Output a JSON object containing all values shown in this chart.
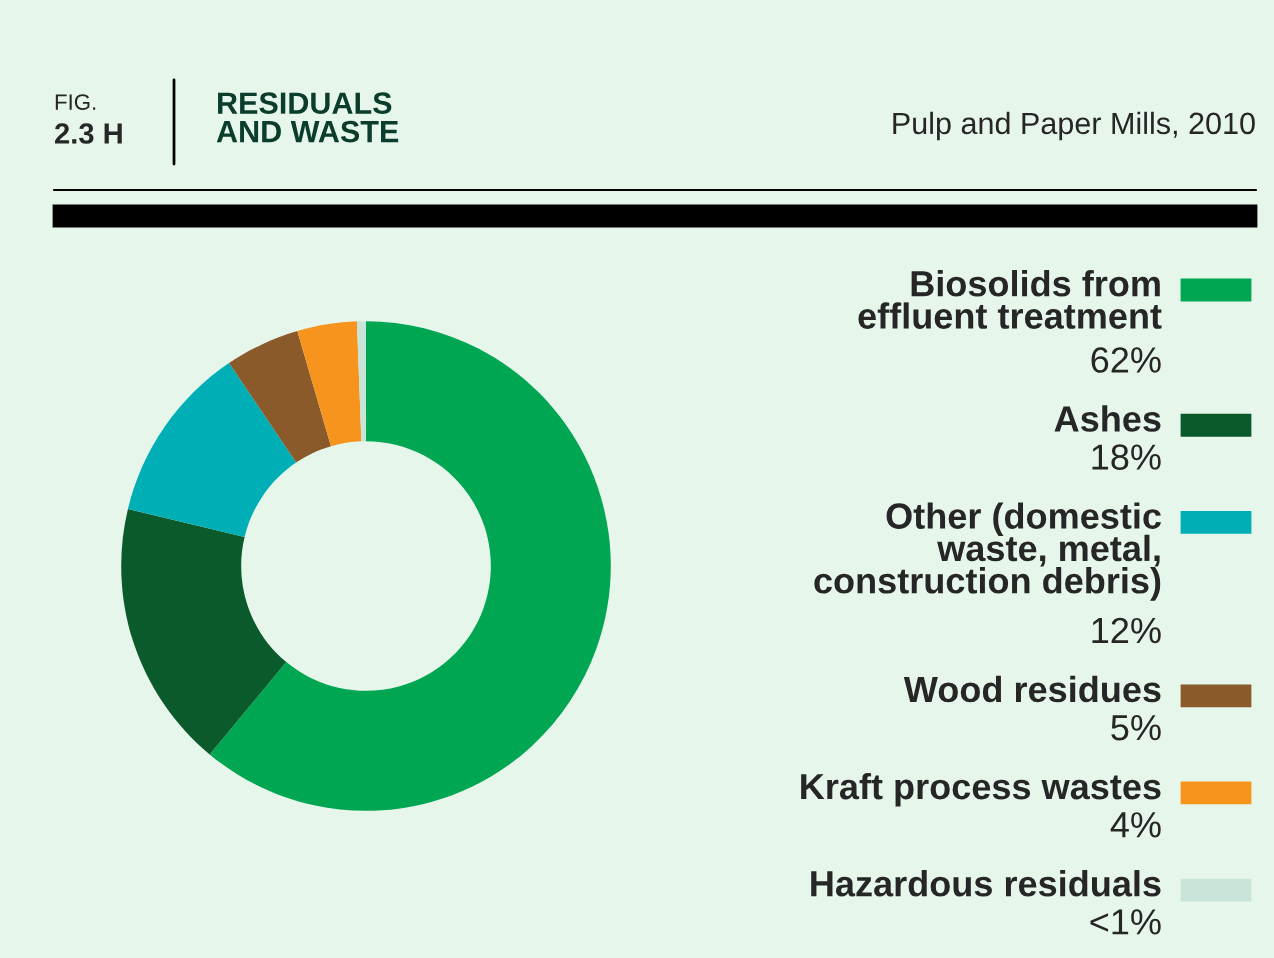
{
  "chart_data": {
    "type": "donut",
    "title": "RESIDUALS\nAND WASTE",
    "subtitle": "Pulp and Paper Mills, 2010",
    "annotations": [
      "FIG.",
      "2.3 H"
    ],
    "categories": [
      "Biosolids from\neffluent treatment",
      "Ashes",
      "Other (domestic\nwaste, metal,\nconstruction debris)",
      "Wood residues",
      "Kraft process wastes",
      "Hazardous residuals"
    ],
    "values": [
      62,
      18,
      12,
      5,
      4,
      0.6
    ],
    "value_labels": [
      "62%",
      "18%",
      "12%",
      "5%",
      "4%",
      "<1%"
    ],
    "colors": [
      "#00a651",
      "#0b5a2c",
      "#00afb5",
      "#8a5a2b",
      "#f7941d",
      "#c9e4d8"
    ],
    "legend": "right"
  }
}
